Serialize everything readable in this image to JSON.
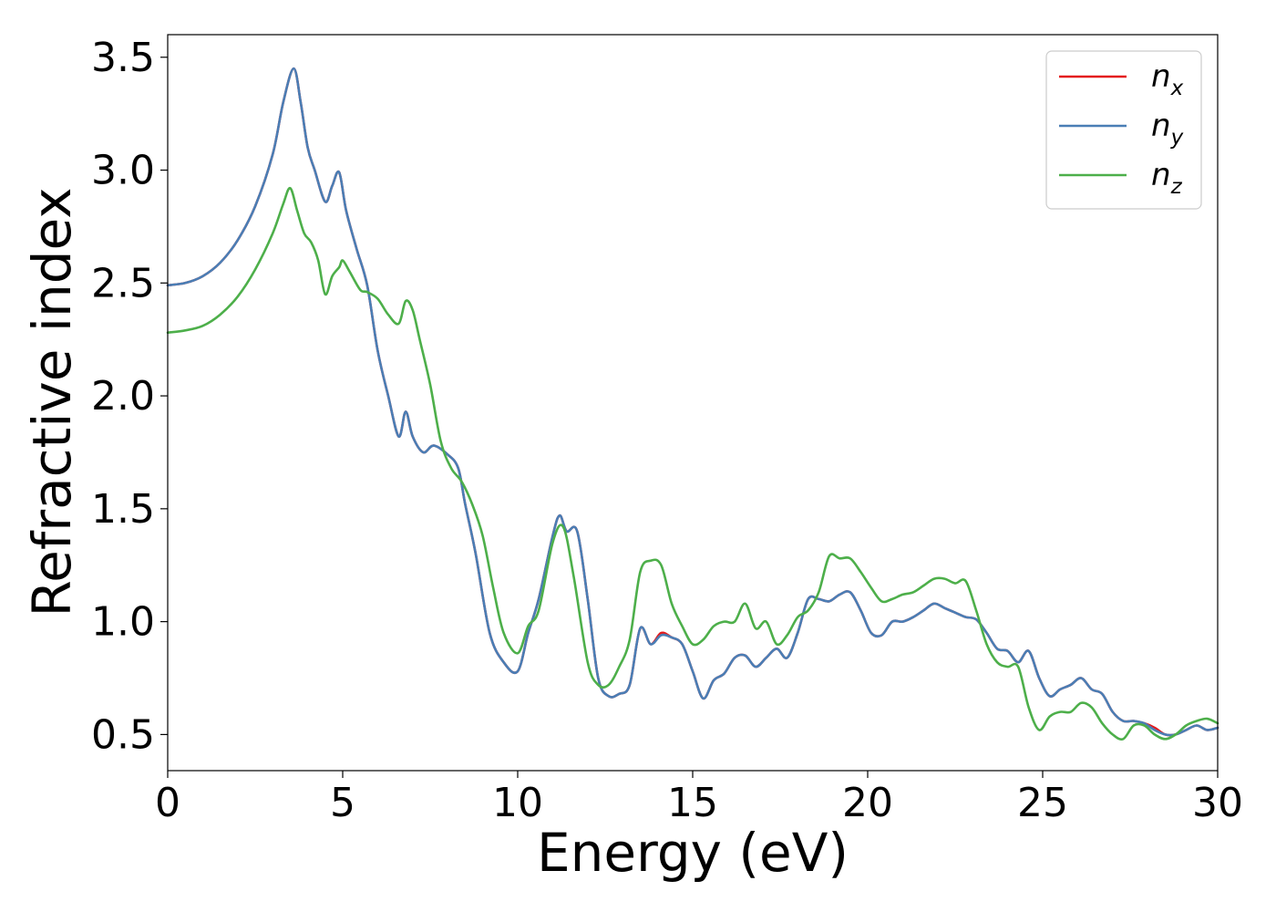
{
  "chart_data": {
    "type": "line",
    "title": "",
    "xlabel": "Energy (eV)",
    "ylabel": "Refractive index",
    "xlim": [
      0,
      30
    ],
    "ylim": [
      0.34,
      3.6
    ],
    "xticks": [
      0,
      5,
      10,
      15,
      20,
      25,
      30
    ],
    "xtick_labels": [
      "0",
      "5",
      "10",
      "15",
      "20",
      "25",
      "30"
    ],
    "yticks": [
      0.5,
      1.0,
      1.5,
      2.0,
      2.5,
      3.0,
      3.5
    ],
    "ytick_labels": [
      "0.5",
      "1.0",
      "1.5",
      "2.0",
      "2.5",
      "3.0",
      "3.5"
    ],
    "grid": false,
    "legend_position": "top-right",
    "series": [
      {
        "name": "n_x",
        "label_base": "n",
        "label_sub": "x",
        "color": "#e41a1c",
        "x": [
          0,
          0.5,
          1,
          1.5,
          2,
          2.5,
          3,
          3.3,
          3.6,
          3.8,
          4.0,
          4.2,
          4.5,
          4.7,
          4.9,
          5.1,
          5.4,
          5.7,
          6.0,
          6.3,
          6.6,
          6.8,
          7.0,
          7.3,
          7.6,
          8.0,
          8.3,
          8.5,
          8.8,
          9.2,
          9.6,
          10.0,
          10.3,
          10.6,
          11.0,
          11.2,
          11.4,
          11.7,
          12.0,
          12.3,
          12.6,
          12.9,
          13.2,
          13.5,
          13.8,
          14.1,
          14.4,
          14.7,
          15.0,
          15.3,
          15.6,
          15.9,
          16.2,
          16.5,
          16.8,
          17.1,
          17.4,
          17.7,
          18.0,
          18.3,
          18.6,
          18.9,
          19.2,
          19.5,
          19.8,
          20.1,
          20.4,
          20.7,
          21.0,
          21.3,
          21.6,
          21.9,
          22.2,
          22.5,
          22.8,
          23.1,
          23.4,
          23.7,
          24.0,
          24.3,
          24.6,
          24.9,
          25.2,
          25.5,
          25.8,
          26.1,
          26.4,
          26.7,
          27.0,
          27.3,
          27.6,
          27.9,
          28.2,
          28.5,
          28.8,
          29.1,
          29.4,
          29.7,
          30
        ],
        "y": [
          2.49,
          2.5,
          2.53,
          2.59,
          2.69,
          2.84,
          3.07,
          3.3,
          3.45,
          3.3,
          3.1,
          3.0,
          2.86,
          2.93,
          2.99,
          2.82,
          2.65,
          2.49,
          2.2,
          2.0,
          1.82,
          1.93,
          1.82,
          1.75,
          1.78,
          1.74,
          1.68,
          1.52,
          1.3,
          0.95,
          0.82,
          0.78,
          0.95,
          1.1,
          1.38,
          1.47,
          1.4,
          1.4,
          1.1,
          0.75,
          0.67,
          0.68,
          0.72,
          0.97,
          0.9,
          0.95,
          0.93,
          0.9,
          0.78,
          0.66,
          0.74,
          0.77,
          0.84,
          0.85,
          0.8,
          0.84,
          0.88,
          0.84,
          0.95,
          1.1,
          1.1,
          1.09,
          1.12,
          1.13,
          1.05,
          0.95,
          0.94,
          1.0,
          1.0,
          1.02,
          1.05,
          1.08,
          1.06,
          1.04,
          1.02,
          1.01,
          0.95,
          0.88,
          0.87,
          0.82,
          0.87,
          0.75,
          0.67,
          0.7,
          0.72,
          0.75,
          0.7,
          0.68,
          0.6,
          0.56,
          0.56,
          0.55,
          0.53,
          0.5,
          0.5,
          0.52,
          0.54,
          0.52,
          0.53
        ]
      },
      {
        "name": "n_y",
        "label_base": "n",
        "label_sub": "y",
        "color": "#4a7eb5",
        "x": [
          0,
          0.5,
          1,
          1.5,
          2,
          2.5,
          3,
          3.3,
          3.6,
          3.8,
          4.0,
          4.2,
          4.5,
          4.7,
          4.9,
          5.1,
          5.4,
          5.7,
          6.0,
          6.3,
          6.6,
          6.8,
          7.0,
          7.3,
          7.6,
          8.0,
          8.3,
          8.5,
          8.8,
          9.2,
          9.6,
          10.0,
          10.3,
          10.6,
          11.0,
          11.2,
          11.4,
          11.7,
          12.0,
          12.3,
          12.6,
          12.9,
          13.2,
          13.5,
          13.8,
          14.1,
          14.4,
          14.7,
          15.0,
          15.3,
          15.6,
          15.9,
          16.2,
          16.5,
          16.8,
          17.1,
          17.4,
          17.7,
          18.0,
          18.3,
          18.6,
          18.9,
          19.2,
          19.5,
          19.8,
          20.1,
          20.4,
          20.7,
          21.0,
          21.3,
          21.6,
          21.9,
          22.2,
          22.5,
          22.8,
          23.1,
          23.4,
          23.7,
          24.0,
          24.3,
          24.6,
          24.9,
          25.2,
          25.5,
          25.8,
          26.1,
          26.4,
          26.7,
          27.0,
          27.3,
          27.6,
          27.9,
          28.2,
          28.5,
          28.8,
          29.1,
          29.4,
          29.7,
          30
        ],
        "y": [
          2.49,
          2.5,
          2.53,
          2.59,
          2.69,
          2.84,
          3.07,
          3.3,
          3.45,
          3.3,
          3.1,
          3.0,
          2.86,
          2.93,
          2.99,
          2.82,
          2.65,
          2.49,
          2.2,
          2.0,
          1.82,
          1.93,
          1.82,
          1.75,
          1.78,
          1.74,
          1.68,
          1.52,
          1.3,
          0.95,
          0.82,
          0.78,
          0.95,
          1.1,
          1.38,
          1.47,
          1.4,
          1.4,
          1.1,
          0.75,
          0.67,
          0.68,
          0.72,
          0.97,
          0.9,
          0.94,
          0.93,
          0.9,
          0.78,
          0.66,
          0.74,
          0.77,
          0.84,
          0.85,
          0.8,
          0.84,
          0.88,
          0.84,
          0.95,
          1.1,
          1.1,
          1.09,
          1.12,
          1.13,
          1.05,
          0.95,
          0.94,
          1.0,
          1.0,
          1.02,
          1.05,
          1.08,
          1.06,
          1.04,
          1.02,
          1.01,
          0.95,
          0.88,
          0.87,
          0.82,
          0.87,
          0.75,
          0.67,
          0.7,
          0.72,
          0.75,
          0.7,
          0.68,
          0.6,
          0.56,
          0.56,
          0.55,
          0.52,
          0.5,
          0.5,
          0.52,
          0.54,
          0.52,
          0.53
        ]
      },
      {
        "name": "n_z",
        "label_base": "n",
        "label_sub": "z",
        "color": "#4daf4a",
        "x": [
          0,
          0.5,
          1,
          1.5,
          2,
          2.5,
          3,
          3.3,
          3.5,
          3.7,
          3.9,
          4.1,
          4.3,
          4.5,
          4.7,
          4.9,
          5.0,
          5.2,
          5.5,
          5.7,
          6.0,
          6.3,
          6.6,
          6.8,
          7.0,
          7.2,
          7.5,
          7.8,
          8.1,
          8.4,
          8.7,
          9.0,
          9.3,
          9.6,
          10.0,
          10.3,
          10.6,
          11.0,
          11.3,
          11.6,
          12.0,
          12.3,
          12.6,
          12.9,
          13.2,
          13.5,
          13.8,
          14.1,
          14.4,
          14.7,
          15.0,
          15.3,
          15.6,
          15.9,
          16.2,
          16.5,
          16.8,
          17.1,
          17.4,
          17.7,
          18.0,
          18.3,
          18.6,
          18.9,
          19.2,
          19.5,
          19.8,
          20.1,
          20.4,
          20.7,
          21.0,
          21.3,
          21.6,
          21.9,
          22.2,
          22.5,
          22.8,
          23.1,
          23.4,
          23.7,
          24.0,
          24.3,
          24.6,
          24.9,
          25.2,
          25.5,
          25.8,
          26.1,
          26.4,
          26.7,
          27.0,
          27.3,
          27.6,
          27.9,
          28.2,
          28.5,
          28.8,
          29.1,
          29.4,
          29.7,
          30
        ],
        "y": [
          2.28,
          2.29,
          2.31,
          2.36,
          2.44,
          2.56,
          2.72,
          2.85,
          2.92,
          2.82,
          2.72,
          2.68,
          2.6,
          2.45,
          2.53,
          2.57,
          2.6,
          2.55,
          2.47,
          2.46,
          2.43,
          2.36,
          2.32,
          2.42,
          2.38,
          2.25,
          2.05,
          1.8,
          1.68,
          1.62,
          1.52,
          1.38,
          1.15,
          0.95,
          0.86,
          0.98,
          1.05,
          1.35,
          1.42,
          1.2,
          0.82,
          0.72,
          0.72,
          0.8,
          0.92,
          1.22,
          1.27,
          1.25,
          1.08,
          0.98,
          0.9,
          0.92,
          0.98,
          1.0,
          1.0,
          1.08,
          0.97,
          1.0,
          0.9,
          0.94,
          1.02,
          1.05,
          1.13,
          1.29,
          1.28,
          1.28,
          1.22,
          1.15,
          1.09,
          1.1,
          1.12,
          1.13,
          1.16,
          1.19,
          1.19,
          1.17,
          1.18,
          1.05,
          0.9,
          0.82,
          0.8,
          0.8,
          0.62,
          0.52,
          0.58,
          0.6,
          0.6,
          0.64,
          0.62,
          0.55,
          0.5,
          0.48,
          0.54,
          0.54,
          0.5,
          0.48,
          0.5,
          0.54,
          0.56,
          0.57,
          0.55
        ]
      }
    ]
  }
}
